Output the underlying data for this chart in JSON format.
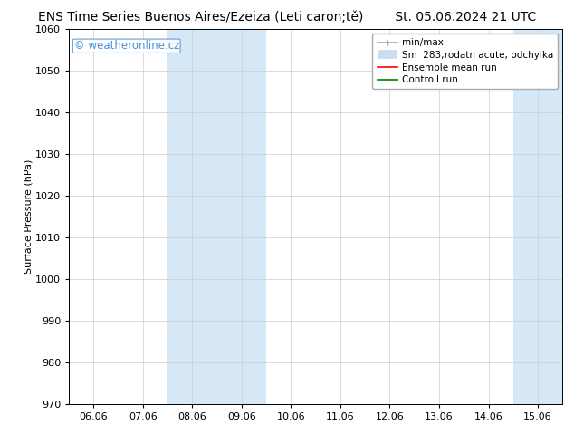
{
  "title_left": "ENS Time Series Buenos Aires/Ezeiza (Leti caron;tě)",
  "title_right": "St. 05.06.2024 21 UTC",
  "ylabel": "Surface Pressure (hPa)",
  "ylim": [
    970,
    1060
  ],
  "yticks": [
    970,
    980,
    990,
    1000,
    1010,
    1020,
    1030,
    1040,
    1050,
    1060
  ],
  "xtick_labels": [
    "06.06",
    "07.06",
    "08.06",
    "09.06",
    "10.06",
    "11.06",
    "12.06",
    "13.06",
    "14.06",
    "15.06"
  ],
  "xtick_positions": [
    0,
    1,
    2,
    3,
    4,
    5,
    6,
    7,
    8,
    9
  ],
  "xlim": [
    -0.5,
    9.5
  ],
  "shaded_regions": [
    {
      "xstart": 1.5,
      "xend": 3.5,
      "color": "#d6e8f5"
    },
    {
      "xstart": 8.5,
      "xend": 9.5,
      "color": "#d6e8f5"
    }
  ],
  "watermark_text": "© weatheronline.cz",
  "watermark_color": "#4a90d9",
  "bg_color": "#ffffff",
  "plot_bg_color": "#ffffff",
  "grid_color": "#cccccc",
  "title_fontsize": 10,
  "ylabel_fontsize": 8,
  "tick_fontsize": 8,
  "legend_fontsize": 7.5,
  "watermark_fontsize": 8.5
}
